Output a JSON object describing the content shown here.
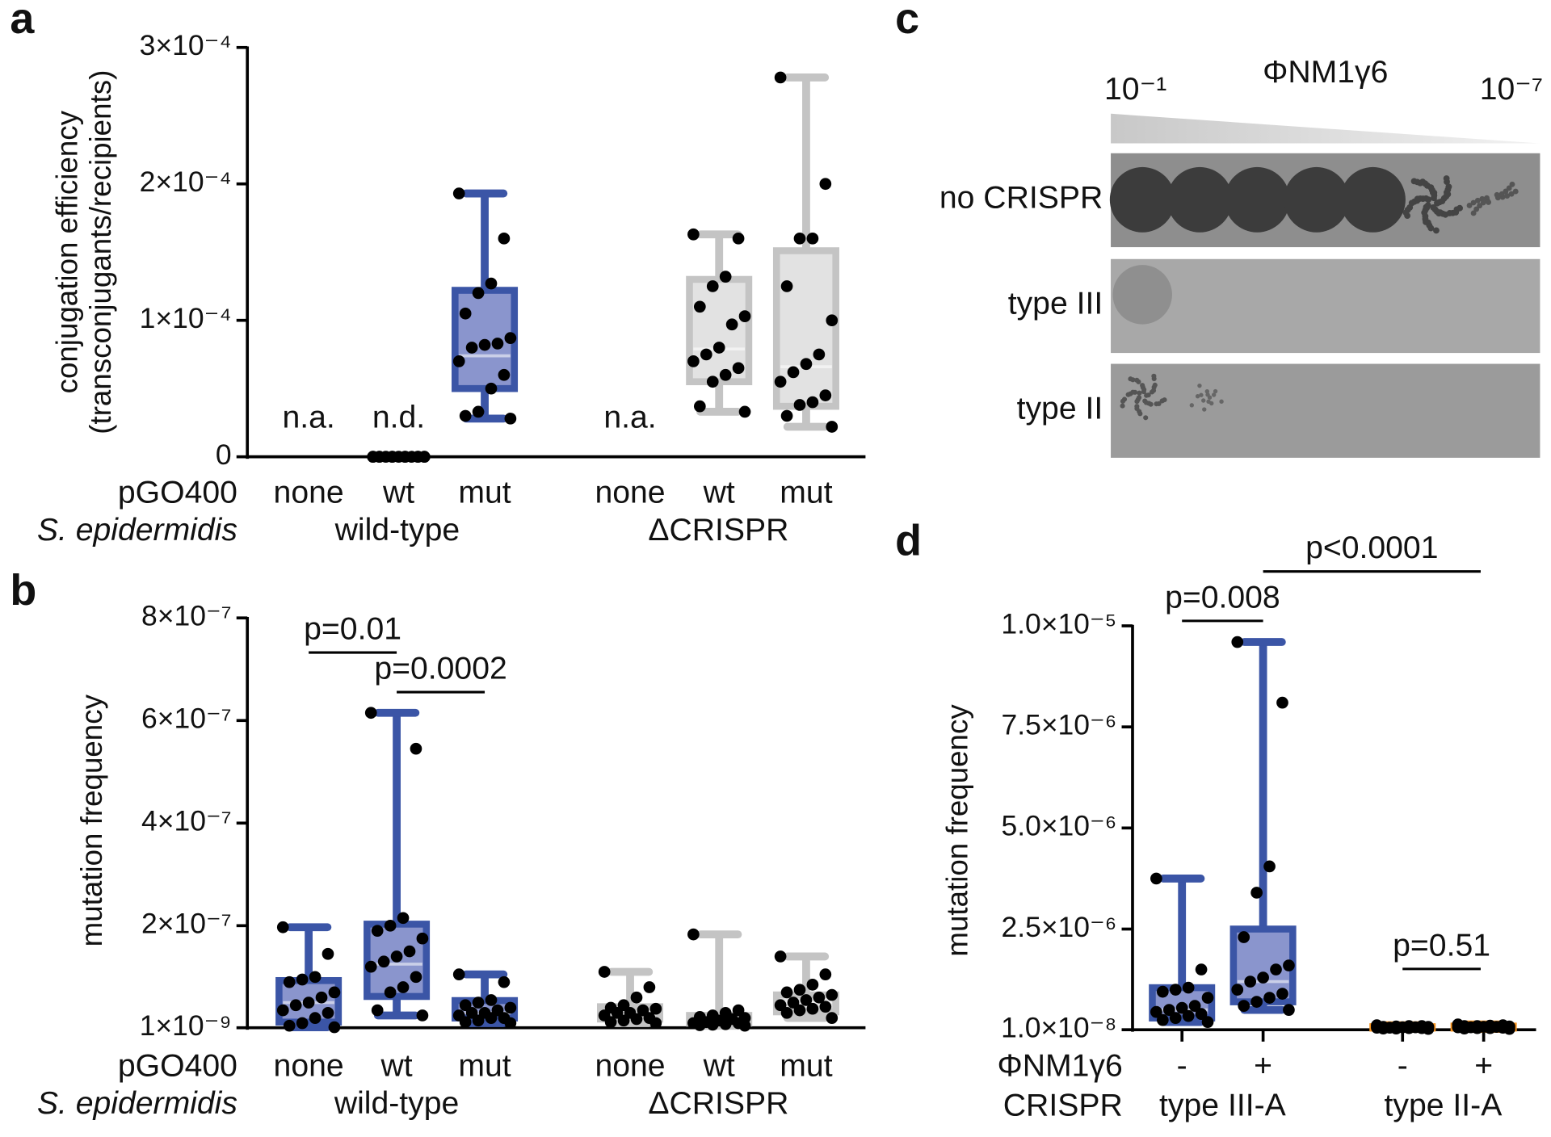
{
  "chart_data": [
    {
      "type": "box",
      "panel": "a",
      "ylabel": [
        "conjugation efficiency",
        "(transconjugants/recipients)"
      ],
      "ylim": [
        0,
        0.0003
      ],
      "yticks": [
        {
          "value": 0,
          "label": "0"
        },
        {
          "value": 0.0001,
          "label": "1×10⁻⁴"
        },
        {
          "value": 0.0002,
          "label": "2×10⁻⁴"
        },
        {
          "value": 0.0003,
          "label": "3×10⁻⁴"
        }
      ],
      "row_labels": [
        "pGO400",
        "S. epidermidis"
      ],
      "groups": [
        {
          "name": "wild-type",
          "color": "#3b55a6",
          "fill": "#8a95cd",
          "categories": [
            "none",
            "wt",
            "mut"
          ],
          "boxes": [
            {
              "annotation": "n.a."
            },
            {
              "annotation": "n.d.",
              "points": [
                0,
                0,
                0,
                0,
                0,
                0,
                0,
                0,
                0,
                0,
                0,
                0,
                0,
                0,
                0
              ]
            },
            {
              "min": 2.8e-05,
              "q1": 5e-05,
              "median": 7.4e-05,
              "q3": 0.000122,
              "max": 0.000193,
              "points": [
                0.000193,
                0.00016,
                0.000127,
                0.00012,
                0.000105,
                8.7e-05,
                8.3e-05,
                8.2e-05,
                8e-05,
                7e-05,
                6e-05,
                5e-05,
                3.3e-05,
                3e-05,
                2.8e-05
              ]
            }
          ]
        },
        {
          "name": "ΔCRISPR",
          "color": "#c4c4c4",
          "fill": "#e2e2e2",
          "categories": [
            "none",
            "wt",
            "mut"
          ],
          "boxes": [
            {
              "annotation": "n.a."
            },
            {
              "min": 3.3e-05,
              "q1": 5.5e-05,
              "median": 7.9e-05,
              "q3": 0.00013,
              "max": 0.000163,
              "points": [
                0.000163,
                0.00016,
                0.000132,
                0.000125,
                0.00011,
                0.000103,
                9.7e-05,
                8e-05,
                7.5e-05,
                7e-05,
                6.5e-05,
                6e-05,
                5.5e-05,
                3.7e-05,
                3.3e-05
              ]
            },
            {
              "min": 2.2e-05,
              "q1": 3.7e-05,
              "median": 6.6e-05,
              "q3": 0.000151,
              "max": 0.000278,
              "points": [
                0.000278,
                0.0002,
                0.00016,
                0.00016,
                0.000125,
                0.0001,
                7.5e-05,
                6.8e-05,
                6.2e-05,
                5.5e-05,
                4.5e-05,
                4e-05,
                3.8e-05,
                3e-05,
                2.2e-05
              ]
            }
          ]
        }
      ]
    },
    {
      "type": "box",
      "panel": "b",
      "ylabel": [
        "mutation frequency"
      ],
      "ylim": [
        1e-09,
        8e-07
      ],
      "yticks": [
        {
          "value": 1e-09,
          "label": "1×10⁻⁹"
        },
        {
          "value": 2e-07,
          "label": "2×10⁻⁷"
        },
        {
          "value": 4e-07,
          "label": "4×10⁻⁷"
        },
        {
          "value": 6e-07,
          "label": "6×10⁻⁷"
        },
        {
          "value": 8e-07,
          "label": "8×10⁻⁷"
        }
      ],
      "row_labels": [
        "pGO400",
        "S. epidermidis"
      ],
      "comparisons": [
        "p=0.01",
        "p=0.0002"
      ],
      "groups": [
        {
          "name": "wild-type",
          "color": "#3b55a6",
          "fill": "#8a95cd",
          "categories": [
            "none",
            "wt",
            "mut"
          ],
          "boxes": [
            {
              "min": 2e-09,
              "q1": 1.2e-08,
              "median": 5e-08,
              "q3": 9.3e-08,
              "max": 1.97e-07,
              "points": [
                1.97e-07,
                1.45e-07,
                1e-07,
                9.5e-08,
                9e-08,
                7e-08,
                6e-08,
                5e-08,
                4.5e-08,
                3.5e-08,
                3e-08,
                2e-08,
                1e-08,
                5e-09,
                2e-09
              ]
            },
            {
              "min": 2.5e-08,
              "q1": 6.2e-08,
              "median": 1.25e-07,
              "q3": 2.03e-07,
              "max": 6.15e-07,
              "points": [
                6.15e-07,
                5.45e-07,
                2.15e-07,
                2e-07,
                1.9e-07,
                1.75e-07,
                1.5e-07,
                1.4e-07,
                1.3e-07,
                1.2e-07,
                1e-07,
                8e-08,
                7e-08,
                3.5e-08,
                2.5e-08
              ]
            },
            {
              "min": 1e-08,
              "q1": 2e-08,
              "median": 3e-08,
              "q3": 5.4e-08,
              "max": 1.05e-07,
              "points": [
                1.05e-07,
                9e-08,
                5.5e-08,
                5e-08,
                4.5e-08,
                4e-08,
                3.5e-08,
                3e-08,
                3e-08,
                2.5e-08,
                2e-08,
                2e-08,
                1.5e-08,
                1.2e-08,
                1e-08
              ]
            }
          ]
        },
        {
          "name": "ΔCRISPR",
          "color": "#c4c4c4",
          "fill": "#e2e2e2",
          "categories": [
            "none",
            "wt",
            "mut"
          ],
          "boxes": [
            {
              "min": 1e-08,
              "q1": 1.8e-08,
              "median": 3e-08,
              "q3": 4.2e-08,
              "max": 1.1e-07,
              "points": [
                1.1e-07,
                8e-08,
                6e-08,
                4.5e-08,
                4e-08,
                3.8e-08,
                3.5e-08,
                3e-08,
                3e-08,
                2.5e-08,
                2e-08,
                1.8e-08,
                1.5e-08,
                1.2e-08,
                1e-08
              ]
            },
            {
              "min": 5e-09,
              "q1": 1e-08,
              "median": 1.5e-08,
              "q3": 2.5e-08,
              "max": 1.83e-07,
              "points": [
                1.83e-07,
                3.5e-08,
                3e-08,
                2.5e-08,
                2.2e-08,
                2e-08,
                1.8e-08,
                1.5e-08,
                1.2e-08,
                1e-08,
                1e-08,
                8e-09,
                7e-09,
                6e-09,
                5e-09
              ]
            },
            {
              "min": 2e-08,
              "q1": 3.2e-08,
              "median": 5e-08,
              "q3": 6.5e-08,
              "max": 1.4e-07,
              "points": [
                1.4e-07,
                1.05e-07,
                8.5e-08,
                7.5e-08,
                7e-08,
                6.5e-08,
                6e-08,
                5.5e-08,
                5e-08,
                4.5e-08,
                4.2e-08,
                3.8e-08,
                3.5e-08,
                3e-08,
                2e-08
              ]
            }
          ]
        }
      ]
    },
    {
      "type": "image",
      "panel": "c",
      "title": "ΦNM1γ6",
      "dilution_labels": [
        "10⁻¹",
        "10⁻⁷"
      ],
      "row_labels": [
        "no CRISPR",
        "type III",
        "type II"
      ]
    },
    {
      "type": "box",
      "panel": "d",
      "ylabel": [
        "mutation frequency"
      ],
      "ylim": [
        1e-08,
        1e-05
      ],
      "yticks": [
        {
          "value": 1e-08,
          "label": "1.0×10⁻⁸"
        },
        {
          "value": 2.5e-06,
          "label": "2.5×10⁻⁶"
        },
        {
          "value": 5e-06,
          "label": "5.0×10⁻⁶"
        },
        {
          "value": 7.5e-06,
          "label": "7.5×10⁻⁶"
        },
        {
          "value": 1e-05,
          "label": "1.0×10⁻⁵"
        }
      ],
      "row_labels": [
        "ΦNM1γ6",
        "CRISPR"
      ],
      "comparisons": [
        "p=0.008",
        "p<0.0001",
        "p=0.51"
      ],
      "groups": [
        {
          "name": "type III-A",
          "color": "#3b55a6",
          "fill": "#8a95cd",
          "categories": [
            "-",
            "+"
          ],
          "boxes": [
            {
              "min": 2e-07,
              "q1": 3e-07,
              "median": 5e-07,
              "q3": 1.05e-06,
              "max": 3.75e-06,
              "points": [
                3.75e-06,
                1.5e-06,
                1.05e-06,
                1e-06,
                9.5e-07,
                8e-07,
                6e-07,
                5.5e-07,
                5e-07,
                4.5e-07,
                4e-07,
                3.5e-07,
                3e-07,
                2.5e-07,
                2e-07
              ]
            },
            {
              "min": 5e-07,
              "q1": 7e-07,
              "median": 1.2e-06,
              "q3": 2.5e-06,
              "max": 9.6e-06,
              "points": [
                9.6e-06,
                8.1e-06,
                4.05e-06,
                3.4e-06,
                2.3e-06,
                1.6e-06,
                1.5e-06,
                1.3e-06,
                1.2e-06,
                1e-06,
                9e-07,
                8e-07,
                7e-07,
                6e-07,
                5e-07
              ]
            }
          ]
        },
        {
          "name": "type II-A",
          "color": "#f7931e",
          "fill": "#f9b567",
          "categories": [
            "-",
            "+"
          ],
          "boxes": [
            {
              "min": 3e-08,
              "q1": 5e-08,
              "median": 6.5e-08,
              "q3": 8.5e-08,
              "max": 1.2e-07,
              "points": [
                1.2e-07,
                1e-07,
                1e-07,
                9e-08,
                8e-08,
                8e-08,
                7e-08,
                7e-08,
                6e-08,
                6e-08,
                5e-08,
                5e-08,
                4e-08,
                4e-08,
                3e-08
              ]
            },
            {
              "min": 3e-08,
              "q1": 5e-08,
              "median": 7.5e-08,
              "q3": 1e-07,
              "max": 1.4e-07,
              "points": [
                1.4e-07,
                1.2e-07,
                1.1e-07,
                1e-07,
                1e-07,
                9e-08,
                8e-08,
                8e-08,
                7e-08,
                7e-08,
                6e-08,
                5e-08,
                5e-08,
                4e-08,
                3e-08
              ]
            }
          ]
        }
      ]
    }
  ]
}
